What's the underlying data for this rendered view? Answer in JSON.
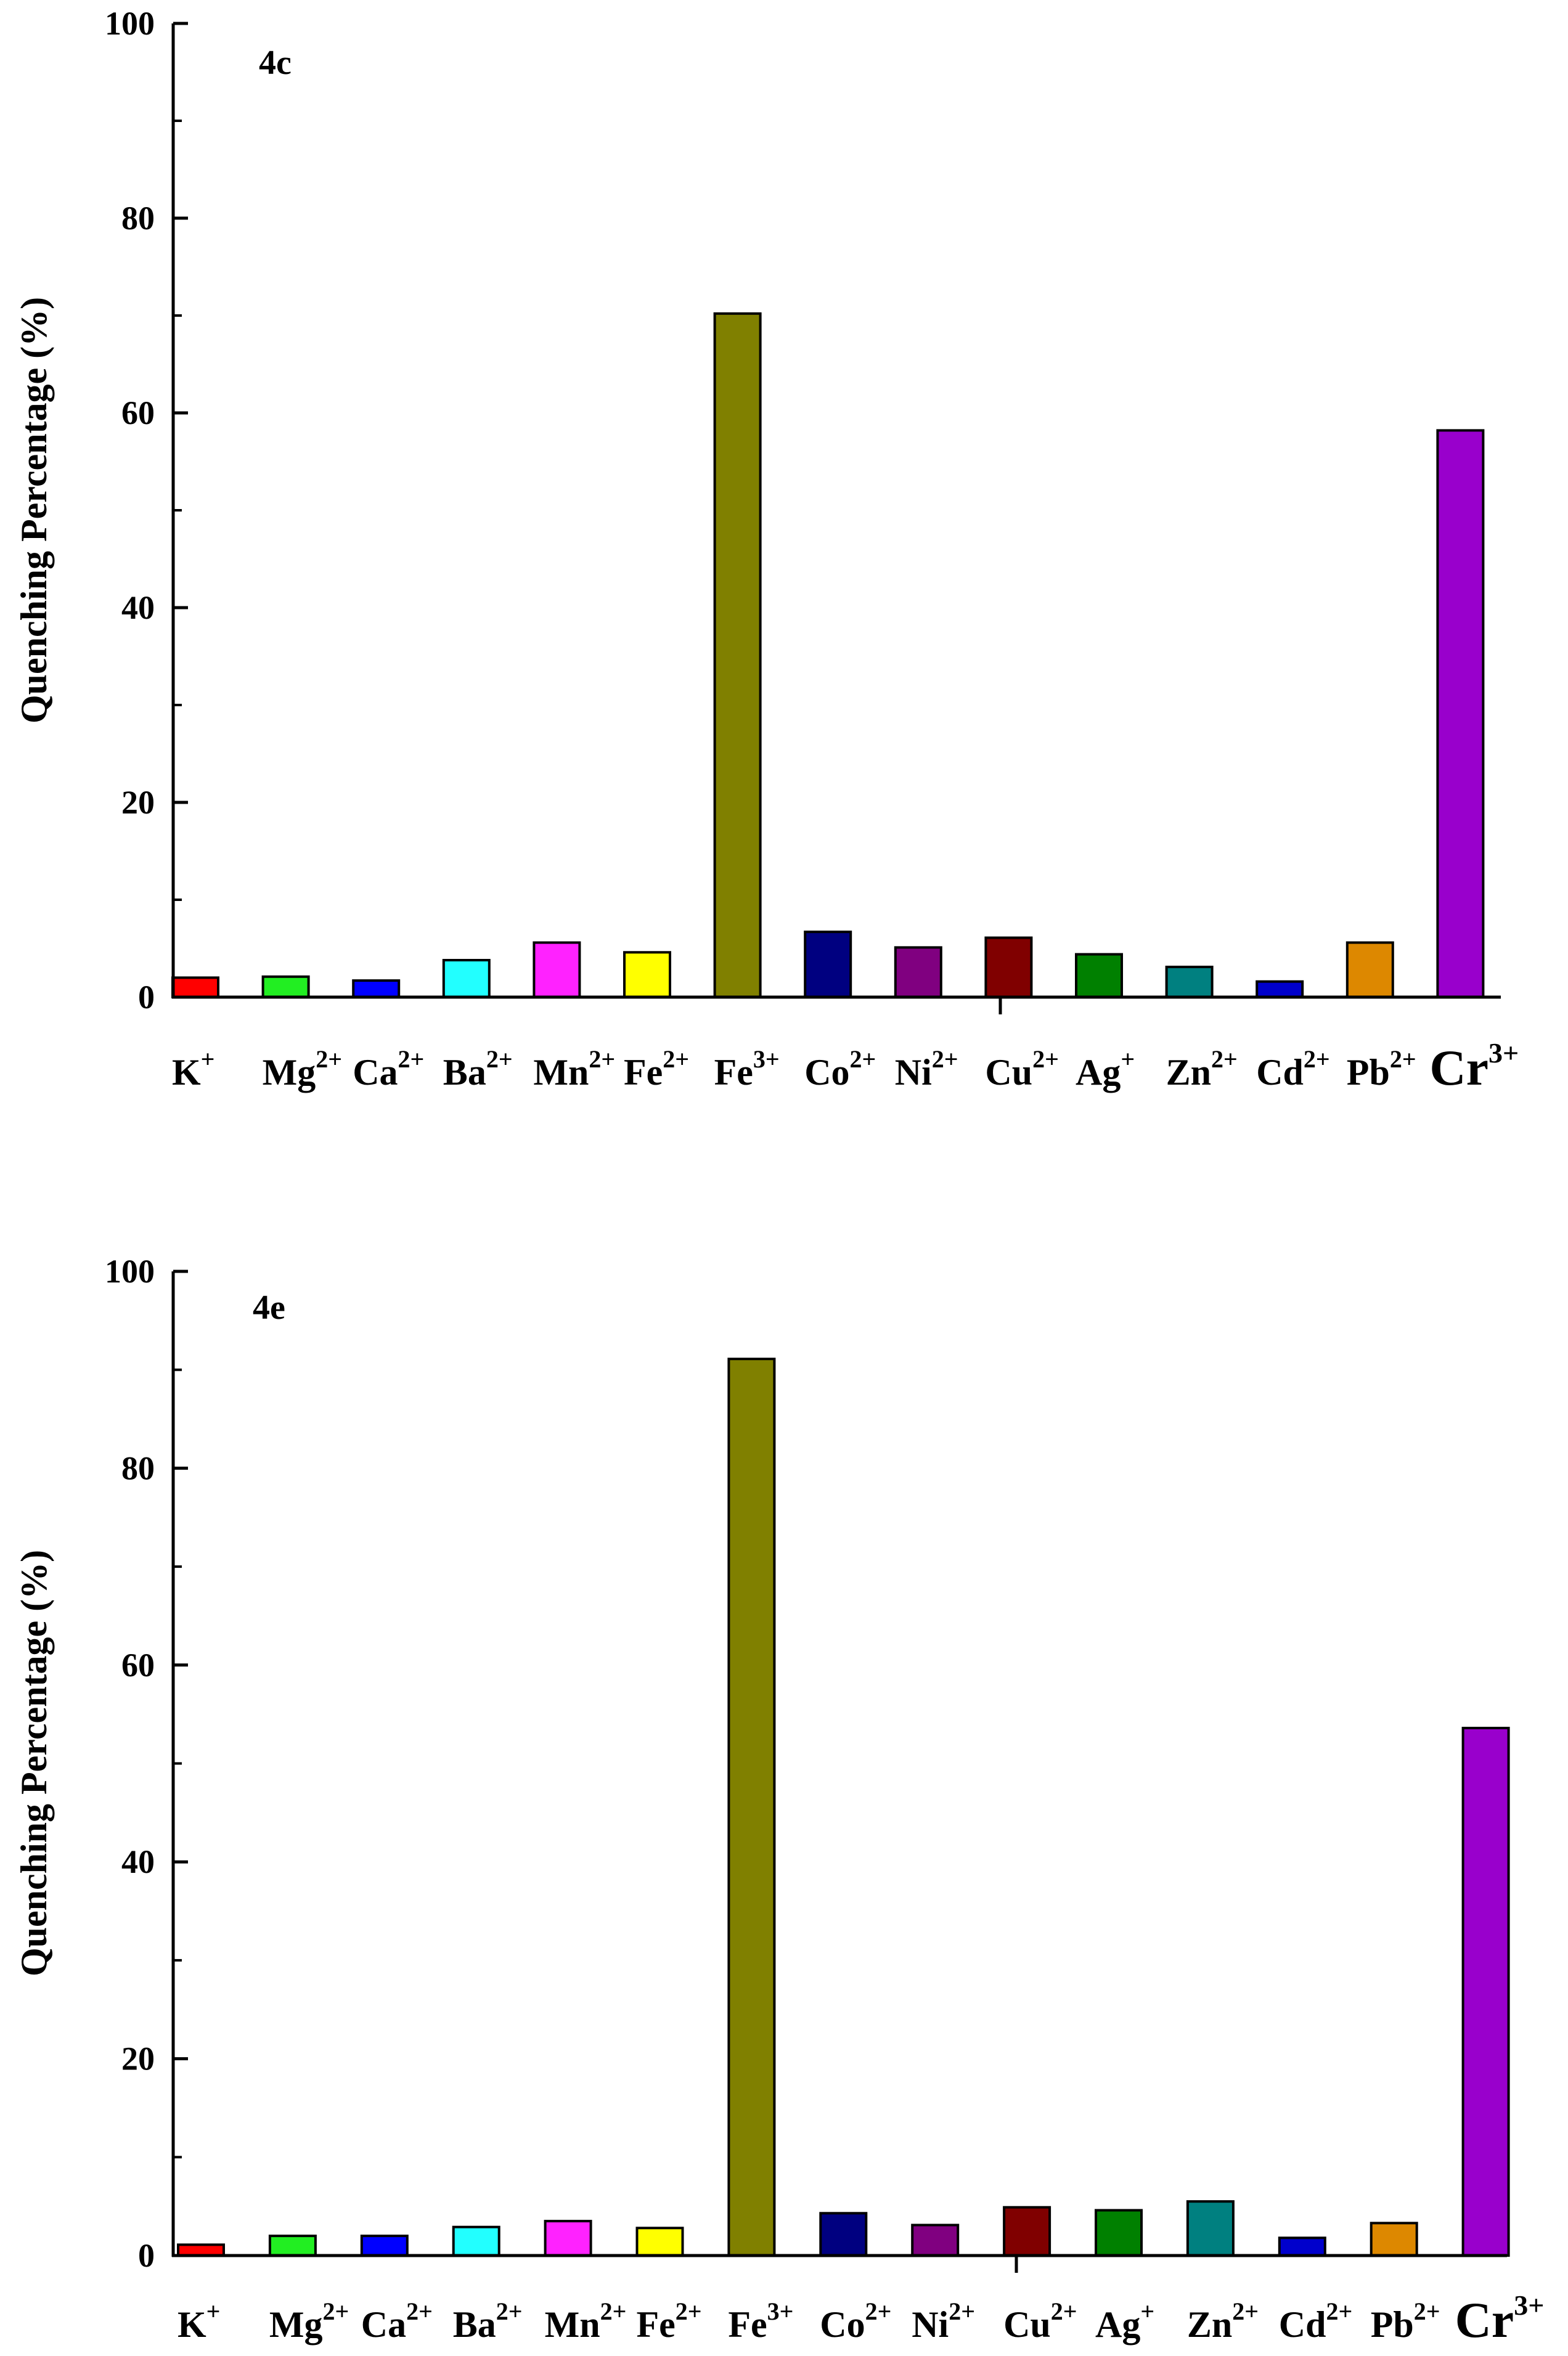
{
  "chart_data": [
    {
      "type": "bar",
      "panel_label": "4c",
      "ylabel": "Quenching Percentage (%)",
      "xlabel": "",
      "ylim": [
        0,
        100
      ],
      "yticks": [
        0,
        20,
        40,
        60,
        80,
        100
      ],
      "categories": [
        {
          "base": "K",
          "sup": "+"
        },
        {
          "base": "Mg",
          "sup": "2+"
        },
        {
          "base": "Ca",
          "sup": "2+"
        },
        {
          "base": "Ba",
          "sup": "2+"
        },
        {
          "base": "Mn",
          "sup": "2+"
        },
        {
          "base": "Fe",
          "sup": "2+"
        },
        {
          "base": "Fe",
          "sup": "3+"
        },
        {
          "base": "Co",
          "sup": "2+"
        },
        {
          "base": "Ni",
          "sup": "2+"
        },
        {
          "base": "Cu",
          "sup": "2+"
        },
        {
          "base": "Ag",
          "sup": "+"
        },
        {
          "base": "Zn",
          "sup": "2+"
        },
        {
          "base": "Cd",
          "sup": "2+"
        },
        {
          "base": "Pb",
          "sup": "2+"
        },
        {
          "base": "Cr",
          "sup": "3+"
        }
      ],
      "values": [
        2.0,
        2.1,
        1.7,
        3.8,
        5.6,
        4.6,
        70.2,
        6.7,
        5.1,
        6.1,
        4.4,
        3.1,
        1.6,
        5.6,
        58.2
      ],
      "colors": [
        "#ff0000",
        "#22ee22",
        "#0000ff",
        "#22ffff",
        "#ff22ff",
        "#ffff00",
        "#808000",
        "#000080",
        "#800080",
        "#800000",
        "#008000",
        "#008080",
        "#0000cc",
        "#dd8800",
        "#9900cc"
      ]
    },
    {
      "type": "bar",
      "panel_label": "4e",
      "ylabel": "Quenching Percentage (%)",
      "xlabel": "",
      "ylim": [
        0,
        100
      ],
      "yticks": [
        0,
        20,
        40,
        60,
        80,
        100
      ],
      "categories": [
        {
          "base": "K",
          "sup": "+"
        },
        {
          "base": "Mg",
          "sup": "2+"
        },
        {
          "base": "Ca",
          "sup": "2+"
        },
        {
          "base": "Ba",
          "sup": "2+"
        },
        {
          "base": "Mn",
          "sup": "2+"
        },
        {
          "base": "Fe",
          "sup": "2+"
        },
        {
          "base": "Fe",
          "sup": "3+"
        },
        {
          "base": "Co",
          "sup": "2+"
        },
        {
          "base": "Ni",
          "sup": "2+"
        },
        {
          "base": "Cu",
          "sup": "2+"
        },
        {
          "base": "Ag",
          "sup": "+"
        },
        {
          "base": "Zn",
          "sup": "2+"
        },
        {
          "base": "Cd",
          "sup": "2+"
        },
        {
          "base": "Pb",
          "sup": "2+"
        },
        {
          "base": "Cr",
          "sup": "3+"
        }
      ],
      "values": [
        1.1,
        2.0,
        2.0,
        2.9,
        3.5,
        2.8,
        91.1,
        4.3,
        3.1,
        4.9,
        4.6,
        5.5,
        1.8,
        3.3,
        53.6
      ],
      "colors": [
        "#ff0000",
        "#22ee22",
        "#0000ff",
        "#22ffff",
        "#ff22ff",
        "#ffff00",
        "#808000",
        "#000080",
        "#800080",
        "#800000",
        "#008000",
        "#008080",
        "#0000cc",
        "#dd8800",
        "#9900cc"
      ]
    }
  ]
}
